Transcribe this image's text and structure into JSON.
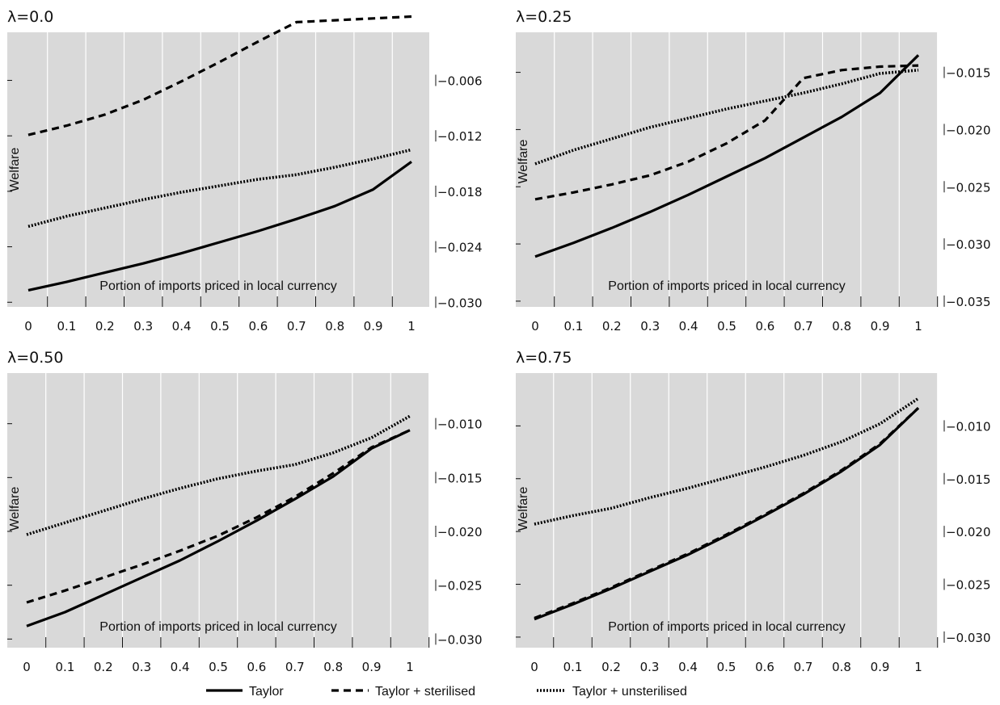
{
  "chart_data": [
    {
      "type": "line",
      "title": "λ=0.0",
      "xlabel": "Portion of imports priced in local currency",
      "ylabel": "Welfare",
      "x": [
        0,
        0.1,
        0.2,
        0.3,
        0.4,
        0.5,
        0.6,
        0.7,
        0.8,
        0.9,
        1
      ],
      "xticklabels": [
        "0",
        "0.1",
        "0.2",
        "0.3",
        "0.4",
        "0.5",
        "0.6",
        "0.7",
        "0.8",
        "0.9",
        "1"
      ],
      "yticks": [
        -0.03,
        -0.024,
        -0.018,
        -0.012,
        -0.006
      ],
      "yticklabels": [
        "−0.030",
        "−0.024",
        "−0.018",
        "−0.012",
        "−0.006"
      ],
      "ylim": [
        -0.0305,
        -0.0008
      ],
      "series": [
        {
          "name": "Taylor",
          "values": [
            -0.0287,
            -0.0278,
            -0.0268,
            -0.0258,
            -0.0247,
            -0.0235,
            -0.0223,
            -0.021,
            -0.0196,
            -0.0178,
            -0.0148
          ]
        },
        {
          "name": "Taylor + sterilised",
          "values": [
            -0.0119,
            -0.0109,
            -0.0097,
            -0.0081,
            -0.0061,
            -0.004,
            -0.0018,
            0.0003,
            0.0005,
            0.0007,
            0.0009
          ]
        },
        {
          "name": "Taylor + unsterilised",
          "values": [
            -0.0218,
            -0.0207,
            -0.0198,
            -0.0189,
            -0.0181,
            -0.0174,
            -0.0167,
            -0.0162,
            -0.0154,
            -0.0145,
            -0.0135
          ]
        }
      ],
      "grid": true
    },
    {
      "type": "line",
      "title": "λ=0.25",
      "xlabel": "Portion of imports priced in local currency",
      "ylabel": "Welfare",
      "x": [
        0,
        0.1,
        0.2,
        0.3,
        0.4,
        0.5,
        0.6,
        0.7,
        0.8,
        0.9,
        1
      ],
      "xticklabels": [
        "0",
        "0.1",
        "0.2",
        "0.3",
        "0.4",
        "0.5",
        "0.6",
        "0.7",
        "0.8",
        "0.9",
        "1"
      ],
      "yticks": [
        -0.035,
        -0.03,
        -0.025,
        -0.02,
        -0.015
      ],
      "yticklabels": [
        "−0.035",
        "−0.030",
        "−0.025",
        "−0.020",
        "−0.015"
      ],
      "ylim": [
        -0.0355,
        -0.0115
      ],
      "series": [
        {
          "name": "Taylor",
          "values": [
            -0.0311,
            -0.0299,
            -0.0286,
            -0.0272,
            -0.0257,
            -0.0241,
            -0.0225,
            -0.0207,
            -0.0189,
            -0.0168,
            -0.0135
          ]
        },
        {
          "name": "Taylor + sterilised",
          "values": [
            -0.0261,
            -0.0255,
            -0.0248,
            -0.024,
            -0.0228,
            -0.0212,
            -0.0192,
            -0.0155,
            -0.0148,
            -0.0145,
            -0.0144
          ]
        },
        {
          "name": "Taylor + unsterilised",
          "values": [
            -0.023,
            -0.0218,
            -0.0208,
            -0.0198,
            -0.019,
            -0.0182,
            -0.0175,
            -0.0168,
            -0.016,
            -0.0151,
            -0.0148
          ]
        }
      ],
      "grid": true
    },
    {
      "type": "line",
      "title": "λ=0.50",
      "xlabel": "Portion of imports priced in local currency",
      "ylabel": "Welfare",
      "x": [
        0,
        0.1,
        0.2,
        0.3,
        0.4,
        0.5,
        0.6,
        0.7,
        0.8,
        0.9,
        1
      ],
      "xticklabels": [
        "0",
        "0.1",
        "0.2",
        "0.3",
        "0.4",
        "0.5",
        "0.6",
        "0.7",
        "0.8",
        "0.9",
        "1"
      ],
      "yticks": [
        -0.03,
        -0.025,
        -0.02,
        -0.015,
        -0.01
      ],
      "yticklabels": [
        "−0.030",
        "−0.025",
        "−0.020",
        "−0.015",
        "−0.010"
      ],
      "ylim": [
        -0.0308,
        -0.0053
      ],
      "series": [
        {
          "name": "Taylor",
          "values": [
            -0.0288,
            -0.0275,
            -0.0259,
            -0.0243,
            -0.0227,
            -0.0209,
            -0.019,
            -0.017,
            -0.0149,
            -0.0123,
            -0.0106
          ]
        },
        {
          "name": "Taylor + sterilised",
          "values": [
            -0.0266,
            -0.0255,
            -0.0243,
            -0.0231,
            -0.0218,
            -0.0204,
            -0.0187,
            -0.0168,
            -0.0146,
            -0.0122,
            -0.0106
          ]
        },
        {
          "name": "Taylor + unsterilised",
          "values": [
            -0.0203,
            -0.0192,
            -0.0181,
            -0.017,
            -0.016,
            -0.0151,
            -0.0144,
            -0.0138,
            -0.0127,
            -0.0113,
            -0.0093
          ]
        }
      ],
      "grid": true
    },
    {
      "type": "line",
      "title": "λ=0.75",
      "xlabel": "Portion of imports priced in local currency",
      "ylabel": "Welfare",
      "x": [
        0,
        0.1,
        0.2,
        0.3,
        0.4,
        0.5,
        0.6,
        0.7,
        0.8,
        0.9,
        1
      ],
      "xticklabels": [
        "0",
        "0.1",
        "0.2",
        "0.3",
        "0.4",
        "0.5",
        "0.6",
        "0.7",
        "0.8",
        "0.9",
        "1"
      ],
      "yticks": [
        -0.03,
        -0.025,
        -0.02,
        -0.015,
        -0.01
      ],
      "yticklabels": [
        "−0.030",
        "−0.025",
        "−0.020",
        "−0.015",
        "−0.010"
      ],
      "ylim": [
        -0.031,
        -0.005
      ],
      "series": [
        {
          "name": "Taylor",
          "values": [
            -0.0283,
            -0.0269,
            -0.0254,
            -0.0238,
            -0.0222,
            -0.0204,
            -0.0185,
            -0.0165,
            -0.0143,
            -0.0118,
            -0.0083
          ]
        },
        {
          "name": "Taylor + sterilised",
          "values": [
            -0.0282,
            -0.0268,
            -0.0253,
            -0.0237,
            -0.0221,
            -0.0203,
            -0.0184,
            -0.0164,
            -0.0142,
            -0.0117,
            -0.0083
          ]
        },
        {
          "name": "Taylor + unsterilised",
          "values": [
            -0.0193,
            -0.0185,
            -0.0178,
            -0.0168,
            -0.0159,
            -0.0149,
            -0.0139,
            -0.0128,
            -0.0115,
            -0.0098,
            -0.0074
          ]
        }
      ],
      "grid": true
    }
  ],
  "legend": {
    "placement": "bottom",
    "items": [
      {
        "label": "Taylor",
        "style": "solid"
      },
      {
        "label": "Taylor + sterilised",
        "style": "dashed"
      },
      {
        "label": "Taylor + unsterilised",
        "style": "dotted"
      }
    ]
  },
  "colors": {
    "plot_background": "#d9d9d9",
    "grid": "#ffffff",
    "lines": "#000000"
  }
}
